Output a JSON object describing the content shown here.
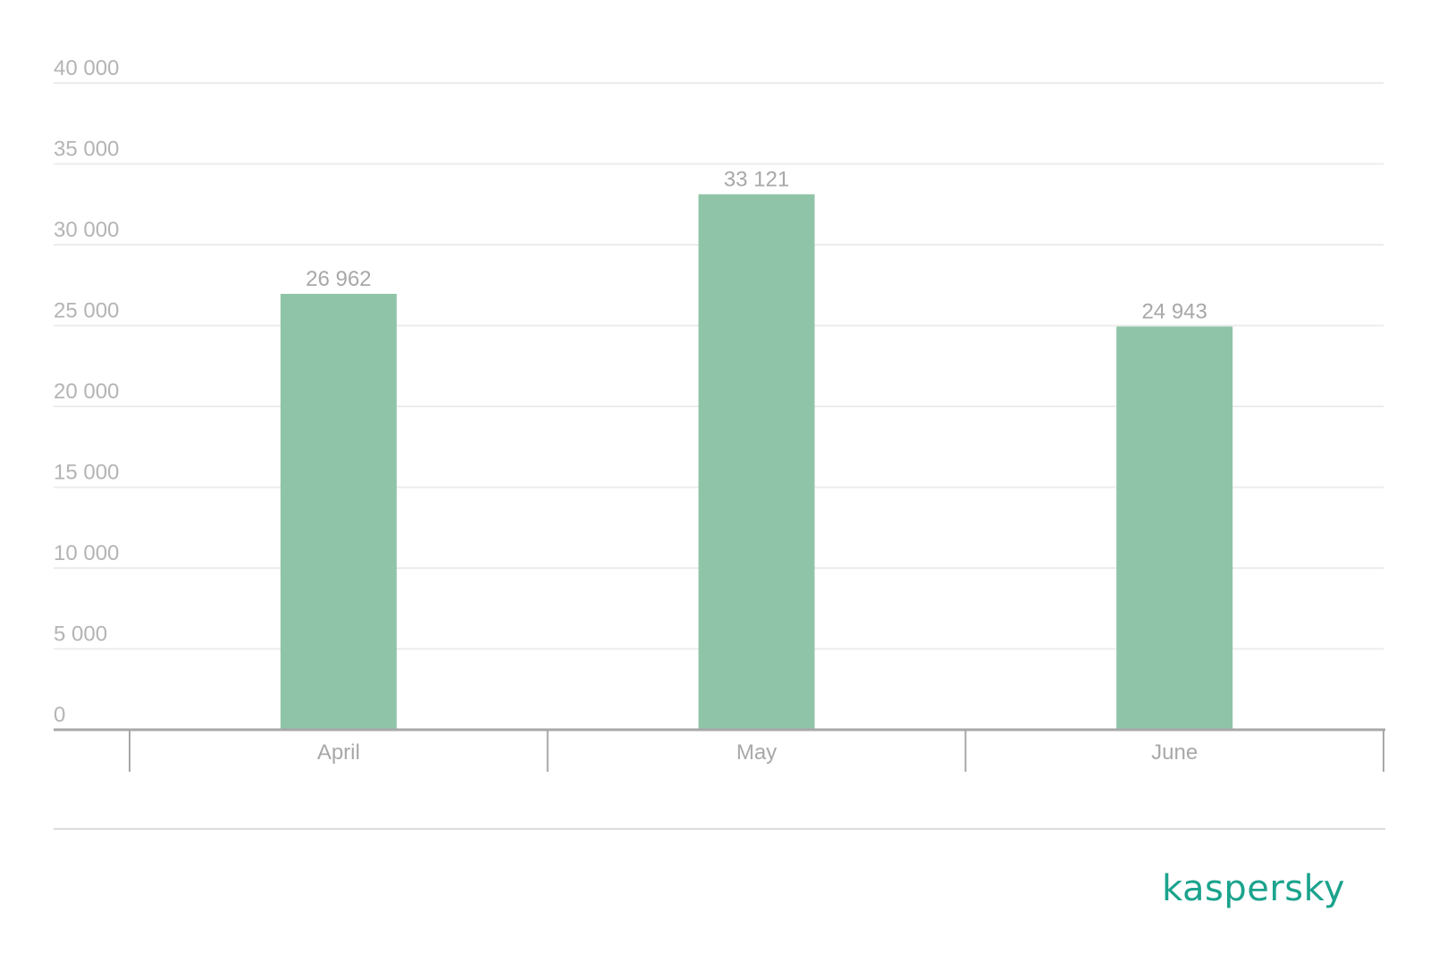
{
  "chart_data": {
    "type": "bar",
    "categories": [
      "April",
      "May",
      "June"
    ],
    "values": [
      26962,
      33121,
      24943
    ],
    "value_labels": [
      "26 962",
      "33 121",
      "24 943"
    ],
    "ylim": [
      0,
      40000
    ],
    "yticks": [
      0,
      5000,
      10000,
      15000,
      20000,
      25000,
      30000,
      35000,
      40000
    ],
    "ytick_labels": [
      "0",
      "5 000",
      "10 000",
      "15 000",
      "20 000",
      "25 000",
      "30 000",
      "35 000",
      "40 000"
    ],
    "grid": true,
    "legend": "none",
    "title": "",
    "xlabel": "",
    "ylabel": "",
    "colors": {
      "bar": "#90c4a8",
      "grid": "#ececec",
      "axis": "#a8a8a8",
      "text": "#b0b0b0"
    }
  },
  "brand": {
    "logo_text": "kaspersky",
    "color": "#1ba38d"
  }
}
